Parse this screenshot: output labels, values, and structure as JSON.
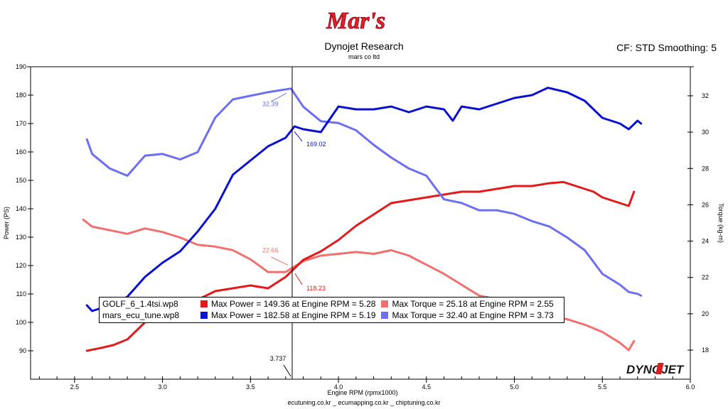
{
  "header": {
    "logo_text": "Mar's",
    "title": "Dynojet Research",
    "subtitle": "mars co ltd",
    "cf_info": "CF: STD Smoothing: 5"
  },
  "footer": {
    "text": "ecutuning.co.kr _ ecumapping.co.kr _ chiptuning.co.kr"
  },
  "brand_logo_text": "DYNOJET",
  "colors": {
    "golf_power": "#e31a1c",
    "golf_torque": "#f07070",
    "mars_power": "#0a10d0",
    "mars_torque": "#6e6ef0"
  },
  "legend": {
    "rows": [
      {
        "file": "GOLF_6_1.4tsi.wp8",
        "power_text": "Max Power = 149.36 at Engine RPM = 5.28",
        "torque_text": "Max Torque = 25.18 at Engine RPM = 2.55",
        "power_color": "#e31a1c",
        "torque_color": "#f07070"
      },
      {
        "file": "mars_ecu_tune.wp8",
        "power_text": "Max Power = 182.58 at Engine RPM = 5.19",
        "torque_text": "Max Torque = 32.40 at Engine RPM = 3.73",
        "power_color": "#0a10d0",
        "torque_color": "#6e6ef0"
      }
    ]
  },
  "chart_data": {
    "type": "line",
    "xlabel": "Engine RPM (rpmx1000)",
    "ylabel": "Power (PS)",
    "y2label": "Torque (kg-m)",
    "xlim": [
      2.25,
      6.0
    ],
    "ylim": [
      80,
      190
    ],
    "y2lim": [
      16.4,
      33.6
    ],
    "x_ticks": [
      "2.5",
      "3.0",
      "3.5",
      "4.0",
      "4.5",
      "5.0",
      "5.5",
      "6.0"
    ],
    "y_ticks": [
      "90",
      "100",
      "110",
      "120",
      "130",
      "140",
      "150",
      "160",
      "170",
      "180",
      "190"
    ],
    "y2_ticks": [
      "18",
      "20",
      "22",
      "24",
      "26",
      "28",
      "30",
      "32"
    ],
    "cursor": {
      "x": 3.737,
      "label": "3.737",
      "annotations": [
        {
          "text": "169.02",
          "series": "mars_power"
        },
        {
          "text": "32.39",
          "series": "mars_torque"
        },
        {
          "text": "22.66",
          "series": "golf_torque"
        },
        {
          "text": "118.23",
          "series": "golf_power"
        }
      ]
    },
    "series": [
      {
        "id": "golf_power",
        "axis": "left",
        "x": [
          2.57,
          2.65,
          2.72,
          2.8,
          2.85,
          2.9,
          3.0,
          3.1,
          3.2,
          3.3,
          3.4,
          3.5,
          3.6,
          3.7,
          3.75,
          3.8,
          3.9,
          4.0,
          4.1,
          4.2,
          4.3,
          4.4,
          4.5,
          4.6,
          4.7,
          4.8,
          4.9,
          5.0,
          5.1,
          5.2,
          5.28,
          5.35,
          5.45,
          5.5,
          5.6,
          5.65,
          5.68
        ],
        "y": [
          90,
          91,
          92,
          94,
          97,
          100,
          102,
          105,
          108,
          111,
          112,
          113,
          112,
          116,
          119,
          122,
          125,
          129,
          134,
          138,
          142,
          143,
          144,
          145,
          146,
          146,
          147,
          148,
          148,
          149,
          149.4,
          148,
          146,
          144,
          142,
          141,
          146
        ]
      },
      {
        "id": "golf_torque",
        "axis": "right",
        "x": [
          2.55,
          2.6,
          2.7,
          2.8,
          2.9,
          3.0,
          3.1,
          3.2,
          3.3,
          3.4,
          3.5,
          3.6,
          3.7,
          3.75,
          3.8,
          3.9,
          4.0,
          4.1,
          4.2,
          4.3,
          4.4,
          4.5,
          4.6,
          4.7,
          4.8,
          4.9,
          5.0,
          5.1,
          5.2,
          5.3,
          5.4,
          5.5,
          5.6,
          5.65,
          5.68
        ],
        "y": [
          25.18,
          24.8,
          24.6,
          24.4,
          24.7,
          24.5,
          24.2,
          23.8,
          23.7,
          23.5,
          23.0,
          22.3,
          22.3,
          22.6,
          22.9,
          23.2,
          23.3,
          23.4,
          23.3,
          23.5,
          23.2,
          22.7,
          22.2,
          21.6,
          21.0,
          20.8,
          20.5,
          20.2,
          19.9,
          19.7,
          19.4,
          19.0,
          18.4,
          18.0,
          18.5
        ]
      },
      {
        "id": "mars_power",
        "axis": "left",
        "x": [
          2.57,
          2.6,
          2.7,
          2.8,
          2.9,
          3.0,
          3.1,
          3.2,
          3.3,
          3.4,
          3.5,
          3.6,
          3.7,
          3.75,
          3.8,
          3.9,
          4.0,
          4.1,
          4.2,
          4.3,
          4.4,
          4.5,
          4.6,
          4.65,
          4.7,
          4.8,
          4.9,
          5.0,
          5.1,
          5.19,
          5.3,
          5.4,
          5.5,
          5.6,
          5.65,
          5.7,
          5.72
        ],
        "y": [
          106,
          104,
          106,
          109,
          116,
          121,
          125,
          132,
          140,
          152,
          157,
          162,
          165,
          169.0,
          168,
          167,
          176,
          175,
          175,
          176,
          174,
          176,
          175,
          171,
          176,
          175,
          177,
          179,
          180,
          182.6,
          181,
          178,
          172,
          170,
          168,
          171,
          170
        ]
      },
      {
        "id": "mars_torque",
        "axis": "right",
        "x": [
          2.57,
          2.6,
          2.7,
          2.8,
          2.9,
          3.0,
          3.1,
          3.2,
          3.3,
          3.4,
          3.5,
          3.6,
          3.73,
          3.8,
          3.9,
          4.0,
          4.1,
          4.2,
          4.3,
          4.4,
          4.5,
          4.6,
          4.7,
          4.8,
          4.9,
          5.0,
          5.1,
          5.2,
          5.3,
          5.4,
          5.5,
          5.6,
          5.65,
          5.7,
          5.72
        ],
        "y": [
          29.6,
          28.8,
          28.0,
          27.6,
          28.7,
          28.8,
          28.5,
          28.9,
          30.8,
          31.8,
          32.0,
          32.2,
          32.4,
          31.4,
          30.6,
          30.5,
          30.1,
          29.3,
          28.6,
          28.0,
          27.6,
          26.3,
          26.1,
          25.7,
          25.7,
          25.5,
          25.1,
          24.8,
          24.2,
          23.5,
          22.2,
          21.6,
          21.2,
          21.1,
          21.0
        ]
      }
    ]
  }
}
